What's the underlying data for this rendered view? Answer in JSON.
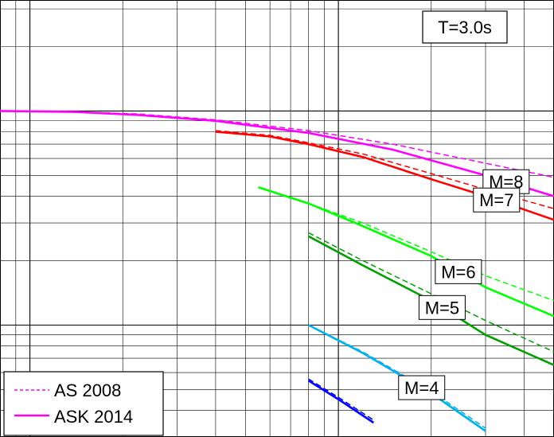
{
  "chart_data": {
    "type": "line",
    "title": "T=3.0s",
    "xlabel": "",
    "ylabel": "",
    "x_scale": "log",
    "y_scale": "log",
    "xlim": [
      8,
      500
    ],
    "ylim": [
      0.003,
      0.33
    ],
    "grid": true,
    "legend": {
      "position": "bottom-left",
      "entries": [
        {
          "name": "AS 2008",
          "style": "dashed",
          "color": "#ff00ff"
        },
        {
          "name": "ASK 2014",
          "style": "solid",
          "color": "#ff00ff"
        }
      ]
    },
    "series": [
      {
        "name": "M=8",
        "color": "#ff00ff",
        "ask2014": {
          "x": [
            8,
            14,
            22,
            40,
            80,
            150,
            300,
            500
          ],
          "y": [
            0.1,
            0.099,
            0.096,
            0.09,
            0.079,
            0.066,
            0.05,
            0.04
          ]
        },
        "as2008": {
          "x": [
            8,
            14,
            22,
            40,
            80,
            150,
            300,
            500
          ],
          "y": [
            0.1,
            0.099,
            0.097,
            0.091,
            0.081,
            0.07,
            0.057,
            0.049
          ]
        }
      },
      {
        "name": "M=7",
        "color": "#ff0000",
        "ask2014": {
          "x": [
            40,
            60,
            80,
            120,
            200,
            300,
            500
          ],
          "y": [
            0.08,
            0.076,
            0.07,
            0.061,
            0.048,
            0.04,
            0.031
          ]
        },
        "as2008": {
          "x": [
            40,
            60,
            80,
            120,
            200,
            300,
            500
          ],
          "y": [
            0.081,
            0.077,
            0.071,
            0.063,
            0.051,
            0.043,
            0.035
          ]
        }
      },
      {
        "name": "M=6",
        "color": "#00ff00",
        "ask2014": {
          "x": [
            55,
            80,
            120,
            200,
            300,
            500
          ],
          "y": [
            0.044,
            0.037,
            0.029,
            0.021,
            0.015,
            0.011
          ]
        },
        "as2008": {
          "x": [
            55,
            80,
            120,
            200,
            300,
            500
          ],
          "y": [
            0.044,
            0.037,
            0.03,
            0.022,
            0.017,
            0.013
          ]
        }
      },
      {
        "name": "M=5",
        "color": "#00a000",
        "ask2014": {
          "x": [
            80,
            120,
            200,
            300,
            500
          ],
          "y": [
            0.026,
            0.019,
            0.013,
            0.009,
            0.0065
          ]
        },
        "as2008": {
          "x": [
            80,
            120,
            200,
            300,
            500
          ],
          "y": [
            0.027,
            0.02,
            0.014,
            0.0105,
            0.0075
          ]
        }
      },
      {
        "name": "M=4",
        "color": "#00b0f0",
        "ask2014": {
          "x": [
            80,
            120,
            200,
            300
          ],
          "y": [
            0.01,
            0.0074,
            0.0048,
            0.0032
          ]
        },
        "as2008": {
          "x": [
            80,
            120,
            200,
            300
          ],
          "y": [
            0.01,
            0.0075,
            0.0049,
            0.0033
          ]
        }
      },
      {
        "name": "",
        "color": "#0000ff",
        "ask2014": {
          "x": [
            80,
            100,
            130
          ],
          "y": [
            0.0055,
            0.0045,
            0.0035
          ]
        },
        "as2008": {
          "x": [
            80,
            100,
            130
          ],
          "y": [
            0.0056,
            0.0046,
            0.0036
          ]
        }
      }
    ]
  }
}
